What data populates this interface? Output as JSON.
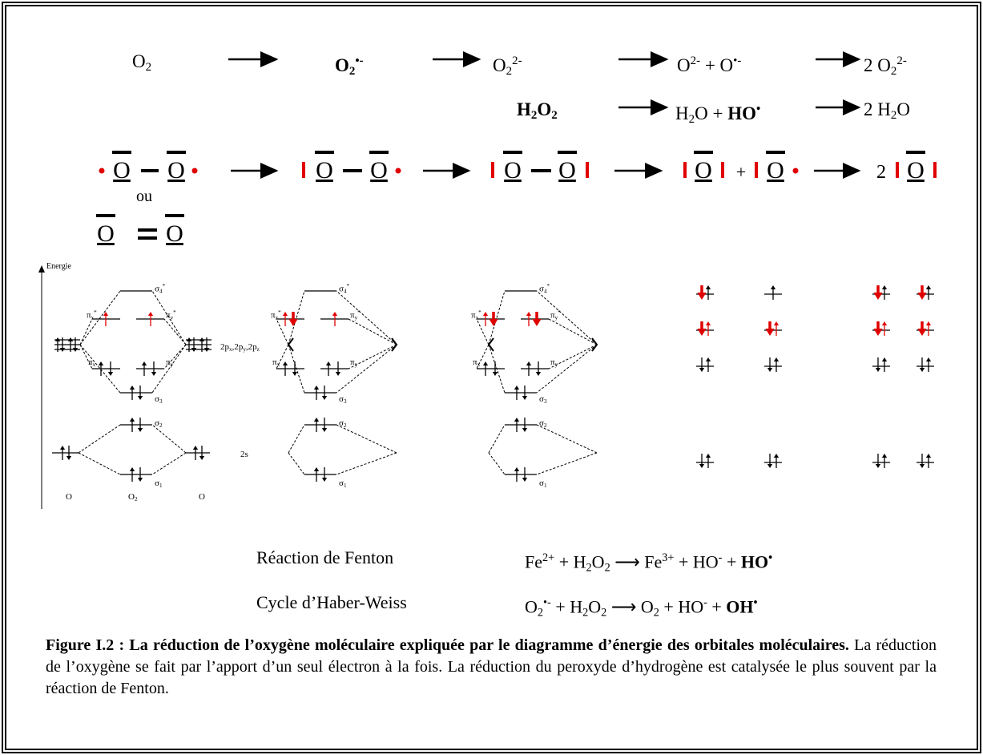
{
  "reactions": {
    "row1": [
      [
        {
          "t": "O"
        },
        {
          "t": "2",
          "k": "sub"
        }
      ],
      [
        {
          "t": "O",
          "b": true
        },
        {
          "t": "2",
          "k": "sub",
          "b": true
        },
        {
          "t": "•-",
          "k": "sup",
          "b": true
        }
      ],
      [
        {
          "t": "O"
        },
        {
          "t": "2",
          "k": "sub"
        },
        {
          "t": "2-",
          "k": "sup"
        }
      ],
      [
        {
          "t": "O"
        },
        {
          "t": "2-",
          "k": "sup"
        },
        {
          "t": " + O"
        },
        {
          "t": "•-",
          "k": "sup"
        }
      ],
      [
        {
          "t": "2 O"
        },
        {
          "t": "2",
          "k": "sub"
        },
        {
          "t": "2-",
          "k": "sup"
        }
      ]
    ],
    "row2": [
      [
        {
          "t": "H",
          "b": true
        },
        {
          "t": "2",
          "k": "sub",
          "b": true
        },
        {
          "t": "O",
          "b": true
        },
        {
          "t": "2",
          "k": "sub",
          "b": true
        }
      ],
      [
        {
          "t": "H"
        },
        {
          "t": "2",
          "k": "sub"
        },
        {
          "t": "O + "
        },
        {
          "t": "HO",
          "b": true
        },
        {
          "t": "•",
          "k": "sup",
          "b": true
        }
      ],
      [
        {
          "t": "2 H"
        },
        {
          "t": "2",
          "k": "sub"
        },
        {
          "t": "O"
        }
      ]
    ]
  },
  "lewis": {
    "atom": "O",
    "or": "ou",
    "plus": "+",
    "coef": "2"
  },
  "mo": {
    "energy": "Energie",
    "atom": "O",
    "molecule": [
      {
        "t": "O"
      },
      {
        "t": "2",
        "k": "sub"
      }
    ],
    "orb2p": [
      {
        "t": "2p"
      },
      {
        "t": "x",
        "k": "sub"
      },
      {
        "t": ",2p"
      },
      {
        "t": "y",
        "k": "sub"
      },
      {
        "t": ",2p"
      },
      {
        "t": "z",
        "k": "sub"
      }
    ],
    "orb2s": "2s",
    "s4": [
      {
        "t": "σ"
      },
      {
        "t": "4",
        "k": "sub"
      },
      {
        "t": "*",
        "k": "sup"
      }
    ],
    "pxs": [
      {
        "t": "π"
      },
      {
        "t": "x",
        "k": "sub"
      },
      {
        "t": "*",
        "k": "sup"
      }
    ],
    "pys": [
      {
        "t": "π"
      },
      {
        "t": "y",
        "k": "sub"
      },
      {
        "t": "*",
        "k": "sup"
      }
    ],
    "px": [
      {
        "t": "π"
      },
      {
        "t": "x",
        "k": "sub"
      }
    ],
    "py": [
      {
        "t": "π"
      },
      {
        "t": "y",
        "k": "sub"
      }
    ],
    "s3": [
      {
        "t": "σ"
      },
      {
        "t": "3",
        "k": "sub"
      }
    ],
    "s2": [
      {
        "t": "σ"
      },
      {
        "t": "2",
        "k": "sub"
      }
    ],
    "s1": [
      {
        "t": "σ"
      },
      {
        "t": "1",
        "k": "sub"
      }
    ]
  },
  "fenton": {
    "label": "Réaction de Fenton",
    "eq": [
      {
        "t": "Fe"
      },
      {
        "t": "2+",
        "k": "sup"
      },
      {
        "t": " + H"
      },
      {
        "t": "2",
        "k": "sub"
      },
      {
        "t": "O"
      },
      {
        "t": "2",
        "k": "sub"
      },
      {
        "t": " ⟶ Fe"
      },
      {
        "t": "3+",
        "k": "sup"
      },
      {
        "t": " + HO"
      },
      {
        "t": "-",
        "k": "sup"
      },
      {
        "t": " + "
      },
      {
        "t": "HO",
        "b": true
      },
      {
        "t": "•",
        "k": "sup",
        "b": true
      }
    ]
  },
  "haber": {
    "label": "Cycle d’Haber-Weiss",
    "eq": [
      {
        "t": "O"
      },
      {
        "t": "2",
        "k": "sub"
      },
      {
        "t": "•-",
        "k": "sup"
      },
      {
        "t": " + H"
      },
      {
        "t": "2",
        "k": "sub"
      },
      {
        "t": "O"
      },
      {
        "t": "2",
        "k": "sub"
      },
      {
        "t": " ⟶ O"
      },
      {
        "t": "2",
        "k": "sub"
      },
      {
        "t": " + HO"
      },
      {
        "t": "-",
        "k": "sup"
      },
      {
        "t": " + "
      },
      {
        "t": "OH",
        "b": true
      },
      {
        "t": "•",
        "k": "sup",
        "b": true
      }
    ]
  },
  "caption": {
    "bold": "Figure I.2 : La réduction de l’oxygène moléculaire expliquée par le diagramme d’énergie des orbitales moléculaires.",
    "text": " La réduction de l’oxygène se fait par l’apport d’un seul électron à la fois. La réduction du peroxyde d’hydrogène est catalysée le plus souvent par la réaction de Fenton."
  }
}
